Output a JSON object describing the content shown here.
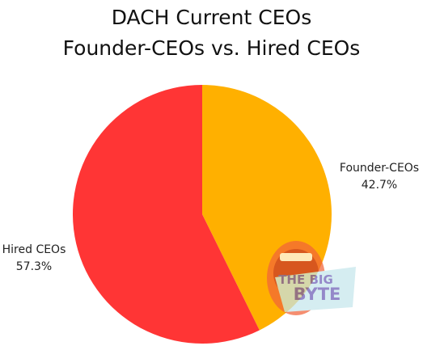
{
  "chart_data": {
    "type": "pie",
    "title": "DACH Current CEOs",
    "subtitle": "Founder-CEOs vs. Hired CEOs",
    "slices": [
      {
        "label": "Founder-CEOs",
        "value": 42.7,
        "display": "42.7%",
        "color": "#FFB000"
      },
      {
        "label": "Hired CEOs",
        "value": 57.3,
        "display": "57.3%",
        "color": "#FF3535"
      }
    ],
    "start_angle_deg": 0,
    "direction": "clockwise"
  },
  "watermark": {
    "line1": "THE BIG",
    "line2": "BYTE",
    "text_color": "#6B5BB5",
    "icon": "mouth-logo-icon"
  }
}
